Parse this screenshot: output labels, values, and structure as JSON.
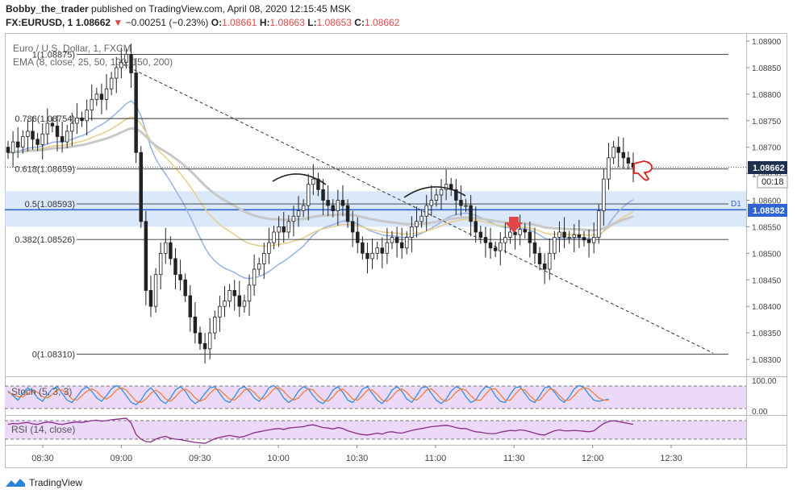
{
  "header": {
    "author": "Bobby_the_trader",
    "published": "published on TradingView.com, April 08, 2020 12:15:45 MSK",
    "symbol": "FX:EURUSD, 1",
    "last": "1.08662",
    "change": "−0.00251 (−0.23%)",
    "o_label": "O:",
    "o": "1.08661",
    "h_label": "H:",
    "h": "1.08663",
    "l_label": "L:",
    "l": "1.08653",
    "c_label": "C:",
    "c": "1.08662"
  },
  "legend": {
    "instrument": "Euro / U.S. Dollar, 1, FXCM",
    "ema": "EMA (8, close, 25, 50, 100, 150, 200)",
    "stoch": "Stoch (5, 3, 3)",
    "rsi": "RSI (14, close)"
  },
  "colors": {
    "up": "#e04848",
    "candle": "#222222",
    "zone": "#cfe0f7",
    "stoch_k": "#2f8fe0",
    "stoch_d": "#f07f3a",
    "rsi": "#8a2a8a",
    "osc_bg": "#ecd9f7",
    "ema_blue": "#9ab6e6",
    "ema_gold": "#e8cf8f",
    "ema_grey": "#c8c8c8"
  },
  "badges": {
    "price": "1.08662",
    "countdown": "00:18",
    "level": "1.08582",
    "level_tag": "D1"
  },
  "footer": {
    "brand": "TradingView"
  },
  "chart_data": {
    "type": "candlestick",
    "title": "Euro / U.S. Dollar, 1, FXCM",
    "ylim": [
      1.0828,
      1.0891
    ],
    "y_ticks": [
      "1.08900",
      "1.08850",
      "1.08800",
      "1.08750",
      "1.08700",
      "1.08650",
      "1.08600",
      "1.08550",
      "1.08500",
      "1.08450",
      "1.08400",
      "1.08350",
      "1.08300"
    ],
    "x_ticks": [
      "08:30",
      "09:00",
      "09:30",
      "10:00",
      "10:30",
      "11:00",
      "11:30",
      "12:00",
      "12:30"
    ],
    "x_tick_minutes": [
      510,
      540,
      570,
      600,
      630,
      660,
      690,
      720,
      750
    ],
    "fib_levels": [
      {
        "label": "1(1.08875)",
        "value": 1.08875
      },
      {
        "label": "0.786(1.08754)",
        "value": 1.08754
      },
      {
        "label": "0.618(1.08659)",
        "value": 1.08659
      },
      {
        "label": "0.5(1.08593)",
        "value": 1.08593
      },
      {
        "label": "0.382(1.08526)",
        "value": 1.08526
      },
      {
        "label": "0(1.08310)",
        "value": 1.0831
      }
    ],
    "zone": [
      1.0855,
      1.08617
    ],
    "level_line": 1.08582,
    "current_price": 1.08662,
    "trendline": [
      {
        "t": 539.0,
        "p": 1.0886
      },
      {
        "t": 766.0,
        "p": 1.08312
      }
    ],
    "stoch_ticks": [
      "100.00",
      "0.00"
    ],
    "close": [
      1.0869,
      1.0871,
      1.087,
      1.0872,
      1.0873,
      1.08715,
      1.08705,
      1.08725,
      1.08745,
      1.0874,
      1.0872,
      1.0871,
      1.0873,
      1.08745,
      1.08755,
      1.0875,
      1.0877,
      1.0879,
      1.088,
      1.0879,
      1.0881,
      1.0883,
      1.0885,
      1.0886,
      1.08875,
      1.0884,
      1.0869,
      1.0856,
      1.0843,
      1.084,
      1.0846,
      1.085,
      1.0852,
      1.0849,
      1.0846,
      1.0845,
      1.0842,
      1.0838,
      1.0835,
      1.0833,
      1.0832,
      1.0835,
      1.0838,
      1.084,
      1.0841,
      1.0843,
      1.0842,
      1.084,
      1.0841,
      1.0844,
      1.0847,
      1.0848,
      1.085,
      1.0852,
      1.0854,
      1.0855,
      1.0854,
      1.0856,
      1.0857,
      1.0858,
      1.0859,
      1.0863,
      1.0864,
      1.0862,
      1.086,
      1.0859,
      1.0858,
      1.086,
      1.0859,
      1.0856,
      1.0854,
      1.0852,
      1.085,
      1.0849,
      1.085,
      1.0851,
      1.085,
      1.0852,
      1.0853,
      1.0852,
      1.0851,
      1.0853,
      1.0855,
      1.0856,
      1.0857,
      1.0859,
      1.086,
      1.0861,
      1.0862,
      1.0863,
      1.0862,
      1.086,
      1.0859,
      1.0859,
      1.0856,
      1.0854,
      1.0853,
      1.0852,
      1.0851,
      1.08505,
      1.0852,
      1.0853,
      1.0854,
      1.08535,
      1.08545,
      1.0854,
      1.0852,
      1.085,
      1.0848,
      1.0847,
      1.085,
      1.0853,
      1.0854,
      1.0853,
      1.0853,
      1.08535,
      1.0853,
      1.08525,
      1.0852,
      1.0853,
      1.0858,
      1.0864,
      1.0868,
      1.087,
      1.0869,
      1.0868,
      1.0867,
      1.08662
    ],
    "stoch_k": [
      70,
      50,
      30,
      60,
      85,
      70,
      40,
      25,
      55,
      80,
      90,
      60,
      30,
      20,
      45,
      75,
      90,
      70,
      40,
      25,
      50,
      80,
      95,
      80,
      50,
      20,
      10,
      30,
      65,
      85,
      60,
      30,
      15,
      40,
      75,
      90,
      70,
      35,
      15,
      30,
      60,
      85,
      90,
      60,
      30,
      20,
      45,
      80,
      90,
      70,
      40,
      25,
      50,
      85,
      95,
      75,
      40,
      20,
      35,
      70,
      90,
      80,
      50,
      25,
      15,
      40,
      75,
      90,
      65,
      30,
      20,
      45,
      80,
      90,
      60,
      30,
      15,
      40,
      75,
      90,
      70,
      35,
      20,
      50,
      85,
      90,
      60,
      30,
      15,
      35,
      70,
      90,
      80,
      45,
      20,
      30,
      65,
      90,
      85,
      50,
      25,
      20,
      55,
      85,
      90,
      60,
      30,
      20,
      50,
      85,
      90,
      65,
      35,
      20,
      45,
      80,
      95,
      85,
      55,
      30,
      25,
      30,
      35
    ],
    "stoch_d": [
      65,
      55,
      45,
      45,
      60,
      70,
      65,
      45,
      40,
      55,
      75,
      75,
      60,
      35,
      30,
      50,
      70,
      80,
      70,
      45,
      35,
      50,
      75,
      85,
      75,
      50,
      25,
      20,
      35,
      60,
      75,
      60,
      35,
      25,
      45,
      70,
      80,
      65,
      40,
      25,
      35,
      60,
      80,
      75,
      55,
      35,
      30,
      50,
      75,
      80,
      65,
      40,
      35,
      55,
      80,
      85,
      70,
      45,
      30,
      40,
      65,
      80,
      75,
      50,
      30,
      25,
      45,
      70,
      80,
      60,
      35,
      30,
      50,
      75,
      75,
      55,
      30,
      25,
      45,
      70,
      80,
      65,
      40,
      30,
      50,
      75,
      80,
      60,
      35,
      25,
      40,
      65,
      80,
      75,
      50,
      30,
      30,
      55,
      80,
      80,
      55,
      30,
      30,
      55,
      80,
      75,
      50,
      30,
      30,
      55,
      80,
      75,
      50,
      30,
      30,
      50,
      75,
      85,
      80,
      60,
      40,
      30,
      30
    ],
    "rsi": [
      62,
      64,
      63,
      65,
      66,
      63,
      62,
      65,
      67,
      66,
      63,
      62,
      64,
      66,
      67,
      66,
      68,
      70,
      71,
      69,
      70,
      72,
      73,
      74,
      75,
      65,
      40,
      30,
      25,
      24,
      30,
      34,
      36,
      32,
      30,
      29,
      27,
      25,
      23,
      22,
      21,
      26,
      31,
      34,
      36,
      38,
      36,
      34,
      36,
      40,
      44,
      46,
      48,
      50,
      52,
      53,
      51,
      54,
      55,
      56,
      57,
      60,
      61,
      58,
      55,
      54,
      52,
      55,
      53,
      48,
      45,
      42,
      40,
      39,
      41,
      43,
      41,
      45,
      46,
      44,
      43,
      46,
      49,
      51,
      53,
      55,
      57,
      58,
      59,
      60,
      58,
      55,
      53,
      53,
      49,
      46,
      45,
      43,
      42,
      42,
      45,
      47,
      49,
      48,
      50,
      49,
      46,
      43,
      40,
      39,
      44,
      48,
      50,
      48,
      48,
      49,
      48,
      47,
      46,
      48,
      56,
      64,
      68,
      70,
      68,
      66,
      64,
      62
    ]
  }
}
